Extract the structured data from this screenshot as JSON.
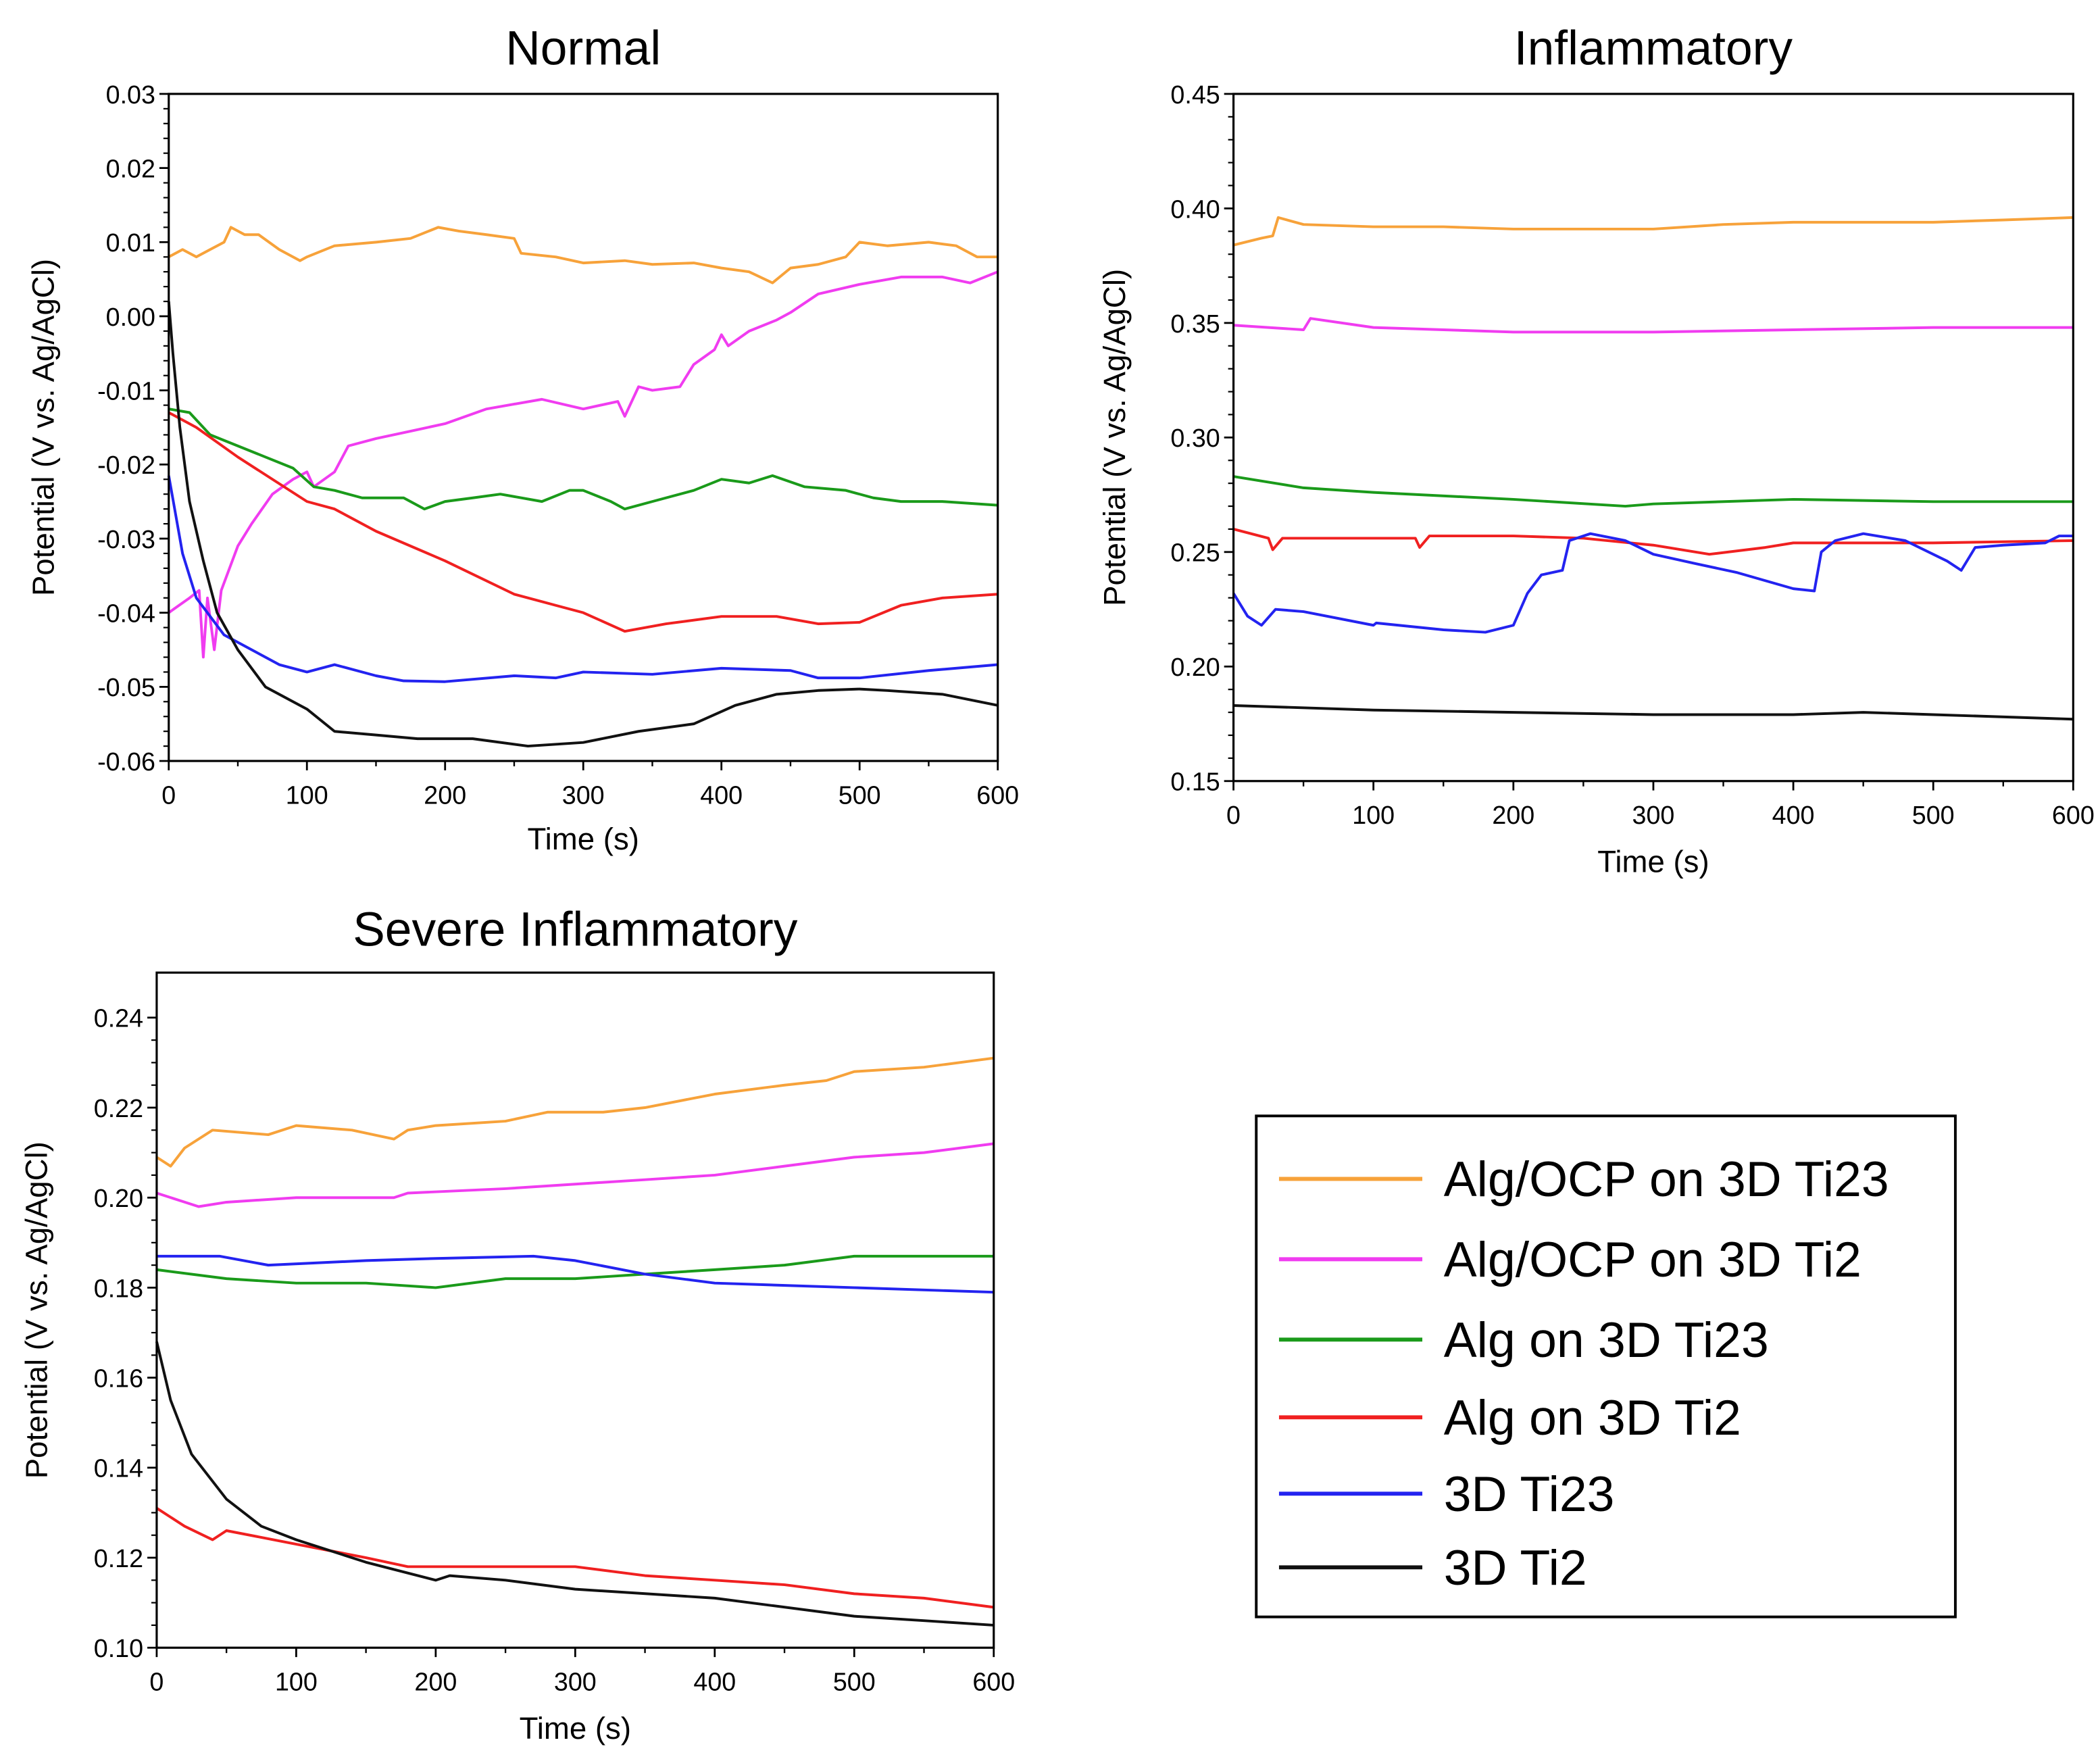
{
  "chart_data": [
    {
      "type": "line",
      "title": "Normal",
      "xlabel": "Time (s)",
      "ylabel": "Potential (V vs. Ag/AgCl)",
      "xlim": [
        0,
        600
      ],
      "ylim": [
        -0.06,
        0.03
      ],
      "xticks": [
        0,
        100,
        200,
        300,
        400,
        500,
        600
      ],
      "yticks": [
        -0.06,
        -0.05,
        -0.04,
        -0.03,
        -0.02,
        -0.01,
        0.0,
        0.01,
        0.02,
        0.03
      ],
      "ytick_labels": [
        "-0.06",
        "-0.05",
        "-0.04",
        "-0.03",
        "-0.02",
        "-0.01",
        "0.00",
        "0.01",
        "0.02",
        "0.03"
      ],
      "series": [
        {
          "name": "Alg/OCP on 3D Ti23",
          "color": "#f7a23a",
          "x": [
            0,
            10,
            20,
            30,
            40,
            45,
            55,
            65,
            80,
            95,
            100,
            120,
            150,
            175,
            195,
            210,
            230,
            250,
            255,
            280,
            300,
            330,
            350,
            380,
            400,
            420,
            437,
            450,
            470,
            490,
            500,
            520,
            550,
            570,
            585,
            600
          ],
          "y": [
            0.008,
            0.009,
            0.008,
            0.009,
            0.01,
            0.012,
            0.011,
            0.011,
            0.009,
            0.0075,
            0.008,
            0.0095,
            0.01,
            0.0105,
            0.012,
            0.0115,
            0.011,
            0.0105,
            0.0085,
            0.008,
            0.0072,
            0.0075,
            0.007,
            0.0072,
            0.0065,
            0.006,
            0.0045,
            0.0065,
            0.007,
            0.008,
            0.01,
            0.0095,
            0.01,
            0.0095,
            0.008,
            0.008
          ]
        },
        {
          "name": "Alg/OCP on 3D Ti2",
          "color": "#f03cf0",
          "x": [
            0,
            15,
            22,
            25,
            28,
            33,
            38,
            50,
            60,
            75,
            90,
            100,
            105,
            120,
            130,
            150,
            175,
            200,
            230,
            270,
            300,
            325,
            330,
            340,
            350,
            370,
            380,
            395,
            400,
            405,
            420,
            440,
            450,
            470,
            500,
            530,
            560,
            580,
            600
          ],
          "y": [
            -0.04,
            -0.038,
            -0.037,
            -0.046,
            -0.038,
            -0.045,
            -0.037,
            -0.031,
            -0.028,
            -0.024,
            -0.022,
            -0.021,
            -0.023,
            -0.021,
            -0.0175,
            -0.0165,
            -0.0155,
            -0.0145,
            -0.0125,
            -0.0112,
            -0.0125,
            -0.0115,
            -0.0135,
            -0.0095,
            -0.01,
            -0.0095,
            -0.0065,
            -0.0045,
            -0.0025,
            -0.004,
            -0.002,
            -0.0005,
            0.0005,
            0.003,
            0.0043,
            0.0053,
            0.0053,
            0.0045,
            0.006
          ]
        },
        {
          "name": "Alg on 3D Ti23",
          "color": "#1a9a1a",
          "x": [
            0,
            15,
            30,
            50,
            70,
            90,
            105,
            120,
            140,
            170,
            185,
            200,
            220,
            240,
            270,
            290,
            300,
            320,
            330,
            350,
            380,
            400,
            420,
            437,
            460,
            490,
            510,
            530,
            560,
            600
          ],
          "y": [
            -0.0125,
            -0.013,
            -0.016,
            -0.0175,
            -0.019,
            -0.0205,
            -0.023,
            -0.0235,
            -0.0245,
            -0.0245,
            -0.026,
            -0.025,
            -0.0245,
            -0.024,
            -0.025,
            -0.0235,
            -0.0235,
            -0.025,
            -0.026,
            -0.025,
            -0.0235,
            -0.022,
            -0.0225,
            -0.0215,
            -0.023,
            -0.0235,
            -0.0245,
            -0.025,
            -0.025,
            -0.0255
          ]
        },
        {
          "name": "Alg on 3D Ti2",
          "color": "#f02020",
          "x": [
            0,
            20,
            50,
            100,
            120,
            150,
            200,
            250,
            280,
            300,
            330,
            360,
            400,
            440,
            470,
            500,
            530,
            560,
            600
          ],
          "y": [
            -0.013,
            -0.015,
            -0.019,
            -0.025,
            -0.026,
            -0.029,
            -0.033,
            -0.0375,
            -0.039,
            -0.04,
            -0.0425,
            -0.0415,
            -0.0405,
            -0.0405,
            -0.0415,
            -0.0413,
            -0.039,
            -0.038,
            -0.0375
          ]
        },
        {
          "name": "3D Ti23",
          "color": "#2323f0",
          "x": [
            0,
            10,
            20,
            40,
            60,
            80,
            100,
            120,
            150,
            170,
            200,
            250,
            280,
            300,
            350,
            400,
            450,
            470,
            500,
            550,
            600
          ],
          "y": [
            -0.0215,
            -0.032,
            -0.038,
            -0.043,
            -0.045,
            -0.047,
            -0.048,
            -0.047,
            -0.0485,
            -0.0492,
            -0.0493,
            -0.0485,
            -0.0488,
            -0.048,
            -0.0483,
            -0.0475,
            -0.0478,
            -0.0488,
            -0.0488,
            -0.0478,
            -0.047
          ]
        },
        {
          "name": "3D Ti2",
          "color": "#111111",
          "x": [
            0,
            3,
            8,
            15,
            25,
            35,
            50,
            70,
            100,
            120,
            150,
            180,
            220,
            260,
            300,
            340,
            380,
            410,
            440,
            470,
            500,
            520,
            560,
            600
          ],
          "y": [
            0.002,
            -0.005,
            -0.015,
            -0.025,
            -0.033,
            -0.04,
            -0.045,
            -0.05,
            -0.053,
            -0.056,
            -0.0565,
            -0.057,
            -0.057,
            -0.058,
            -0.0575,
            -0.056,
            -0.055,
            -0.0525,
            -0.051,
            -0.0505,
            -0.0503,
            -0.0505,
            -0.051,
            -0.0525
          ]
        }
      ]
    },
    {
      "type": "line",
      "title": "Inflammatory",
      "xlabel": "Time (s)",
      "ylabel": "Potential (V vs. Ag/AgCl)",
      "xlim": [
        0,
        600
      ],
      "ylim": [
        0.15,
        0.45
      ],
      "xticks": [
        0,
        100,
        200,
        300,
        400,
        500,
        600
      ],
      "yticks": [
        0.15,
        0.2,
        0.25,
        0.3,
        0.35,
        0.4,
        0.45
      ],
      "ytick_labels": [
        "0.15",
        "0.20",
        "0.25",
        "0.30",
        "0.35",
        "0.40",
        "0.45"
      ],
      "series": [
        {
          "name": "Alg/OCP on 3D Ti23",
          "color": "#f7a23a",
          "x": [
            0,
            20,
            28,
            32,
            50,
            100,
            150,
            200,
            250,
            300,
            350,
            400,
            450,
            500,
            550,
            600
          ],
          "y": [
            0.384,
            0.387,
            0.388,
            0.396,
            0.393,
            0.392,
            0.392,
            0.391,
            0.391,
            0.391,
            0.393,
            0.394,
            0.394,
            0.394,
            0.395,
            0.396
          ]
        },
        {
          "name": "Alg/OCP on 3D Ti2",
          "color": "#f03cf0",
          "x": [
            0,
            50,
            55,
            100,
            150,
            200,
            300,
            400,
            500,
            600
          ],
          "y": [
            0.349,
            0.347,
            0.352,
            0.348,
            0.347,
            0.346,
            0.346,
            0.347,
            0.348,
            0.348
          ]
        },
        {
          "name": "Alg on 3D Ti23",
          "color": "#1a9a1a",
          "x": [
            0,
            50,
            100,
            200,
            280,
            300,
            400,
            500,
            600
          ],
          "y": [
            0.283,
            0.278,
            0.276,
            0.273,
            0.27,
            0.271,
            0.273,
            0.272,
            0.272
          ]
        },
        {
          "name": "Alg on 3D Ti2",
          "color": "#f02020",
          "x": [
            0,
            25,
            28,
            35,
            100,
            130,
            133,
            140,
            200,
            250,
            300,
            340,
            380,
            400,
            500,
            600
          ],
          "y": [
            0.26,
            0.256,
            0.251,
            0.256,
            0.256,
            0.256,
            0.252,
            0.257,
            0.257,
            0.256,
            0.253,
            0.249,
            0.252,
            0.254,
            0.254,
            0.255
          ]
        },
        {
          "name": "3D Ti23",
          "color": "#2323f0",
          "x": [
            0,
            10,
            20,
            30,
            50,
            100,
            102,
            150,
            180,
            200,
            210,
            220,
            235,
            240,
            255,
            280,
            300,
            330,
            360,
            400,
            415,
            420,
            430,
            450,
            480,
            510,
            520,
            530,
            550,
            580,
            590,
            600
          ],
          "y": [
            0.232,
            0.222,
            0.218,
            0.225,
            0.224,
            0.218,
            0.219,
            0.216,
            0.215,
            0.218,
            0.232,
            0.24,
            0.242,
            0.255,
            0.258,
            0.255,
            0.249,
            0.245,
            0.241,
            0.234,
            0.233,
            0.25,
            0.255,
            0.258,
            0.255,
            0.246,
            0.242,
            0.252,
            0.253,
            0.254,
            0.257,
            0.257
          ]
        },
        {
          "name": "3D Ti2",
          "color": "#111111",
          "x": [
            0,
            100,
            200,
            300,
            400,
            450,
            500,
            600
          ],
          "y": [
            0.183,
            0.181,
            0.18,
            0.179,
            0.179,
            0.18,
            0.179,
            0.177
          ]
        }
      ]
    },
    {
      "type": "line",
      "title": "Severe Inflammatory",
      "xlabel": "Time (s)",
      "ylabel": "Potential (V vs. Ag/AgCl)",
      "xlim": [
        0,
        600
      ],
      "ylim": [
        0.1,
        0.25
      ],
      "xticks": [
        0,
        100,
        200,
        300,
        400,
        500,
        600
      ],
      "yticks": [
        0.1,
        0.12,
        0.14,
        0.16,
        0.18,
        0.2,
        0.22,
        0.24
      ],
      "ytick_labels": [
        "0.10",
        "0.12",
        "0.14",
        "0.16",
        "0.18",
        "0.20",
        "0.22",
        "0.24"
      ],
      "series": [
        {
          "name": "Alg/OCP on 3D Ti23",
          "color": "#f7a23a",
          "x": [
            0,
            10,
            20,
            40,
            80,
            100,
            140,
            170,
            180,
            200,
            250,
            280,
            320,
            350,
            400,
            450,
            480,
            500,
            550,
            600
          ],
          "y": [
            0.209,
            0.207,
            0.211,
            0.215,
            0.214,
            0.216,
            0.215,
            0.213,
            0.215,
            0.216,
            0.217,
            0.219,
            0.219,
            0.22,
            0.223,
            0.225,
            0.226,
            0.228,
            0.229,
            0.231
          ]
        },
        {
          "name": "Alg/OCP on 3D Ti2",
          "color": "#f03cf0",
          "x": [
            0,
            30,
            50,
            100,
            170,
            180,
            250,
            300,
            350,
            400,
            450,
            500,
            550,
            600
          ],
          "y": [
            0.201,
            0.198,
            0.199,
            0.2,
            0.2,
            0.201,
            0.202,
            0.203,
            0.204,
            0.205,
            0.207,
            0.209,
            0.21,
            0.212
          ]
        },
        {
          "name": "Alg on 3D Ti23",
          "color": "#1a9a1a",
          "x": [
            0,
            50,
            100,
            150,
            200,
            250,
            300,
            350,
            400,
            450,
            500,
            550,
            600
          ],
          "y": [
            0.184,
            0.182,
            0.181,
            0.181,
            0.18,
            0.182,
            0.182,
            0.183,
            0.184,
            0.185,
            0.187,
            0.187,
            0.187
          ]
        },
        {
          "name": "Alg on 3D Ti2",
          "color": "#f02020",
          "x": [
            0,
            20,
            40,
            50,
            100,
            150,
            180,
            250,
            300,
            350,
            400,
            450,
            500,
            550,
            600
          ],
          "y": [
            0.131,
            0.127,
            0.124,
            0.126,
            0.123,
            0.12,
            0.118,
            0.118,
            0.118,
            0.116,
            0.115,
            0.114,
            0.112,
            0.111,
            0.109
          ]
        },
        {
          "name": "3D Ti23",
          "color": "#2323f0",
          "x": [
            0,
            45,
            80,
            150,
            200,
            270,
            300,
            350,
            400,
            500,
            600
          ],
          "y": [
            0.187,
            0.187,
            0.185,
            0.186,
            0.1865,
            0.187,
            0.186,
            0.183,
            0.181,
            0.18,
            0.179
          ]
        },
        {
          "name": "3D Ti2",
          "color": "#111111",
          "x": [
            0,
            10,
            25,
            50,
            75,
            100,
            150,
            200,
            210,
            250,
            300,
            400,
            500,
            550,
            600
          ],
          "y": [
            0.168,
            0.155,
            0.143,
            0.133,
            0.127,
            0.124,
            0.119,
            0.115,
            0.116,
            0.115,
            0.113,
            0.111,
            0.107,
            0.106,
            0.105
          ]
        }
      ]
    }
  ],
  "legend": {
    "placement": "bottom-right",
    "entries": [
      {
        "label": "Alg/OCP on 3D Ti23",
        "color": "#f7a23a"
      },
      {
        "label": "Alg/OCP on 3D Ti2",
        "color": "#f03cf0"
      },
      {
        "label": "Alg on 3D Ti23",
        "color": "#1a9a1a"
      },
      {
        "label": "Alg on 3D Ti2",
        "color": "#f02020"
      },
      {
        "label": "3D Ti23",
        "color": "#2323f0"
      },
      {
        "label": "3D Ti2",
        "color": "#111111"
      }
    ]
  }
}
